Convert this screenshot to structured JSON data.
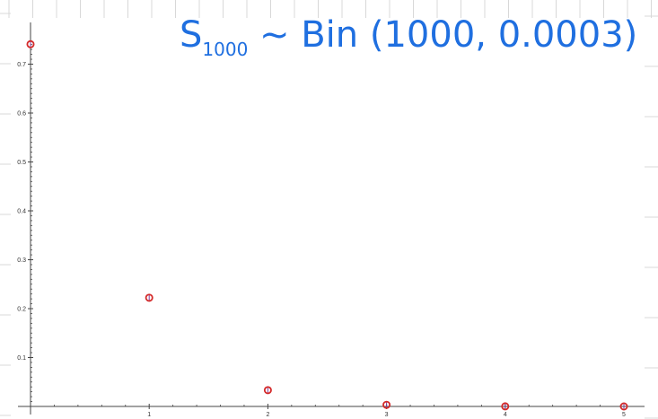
{
  "annotation": {
    "main": "S",
    "subscript": "1000",
    "rest": " ~ Bin (1000, 0.0003)"
  },
  "colors": {
    "point_outline": "#d42a2a",
    "stem": "#7e3ea0",
    "annotation": "#1f6fe0",
    "grid": "#d8d8d8",
    "axis": "#444444"
  },
  "chart_data": {
    "type": "scatter",
    "title": "",
    "xlabel": "",
    "ylabel": "",
    "x": [
      0,
      1,
      2,
      3,
      4,
      5
    ],
    "y": [
      0.7408,
      0.2223,
      0.0333,
      0.0033,
      0.0002,
      0.0
    ],
    "x_ticks": [
      "1",
      "2",
      "3",
      "4",
      "5"
    ],
    "y_ticks": [
      "0.1",
      "0.2",
      "0.3",
      "0.4",
      "0.5",
      "0.6",
      "0.7"
    ],
    "xlim": [
      0,
      5
    ],
    "ylim": [
      0,
      0.75
    ],
    "grid": true,
    "marker": "open-circle"
  }
}
